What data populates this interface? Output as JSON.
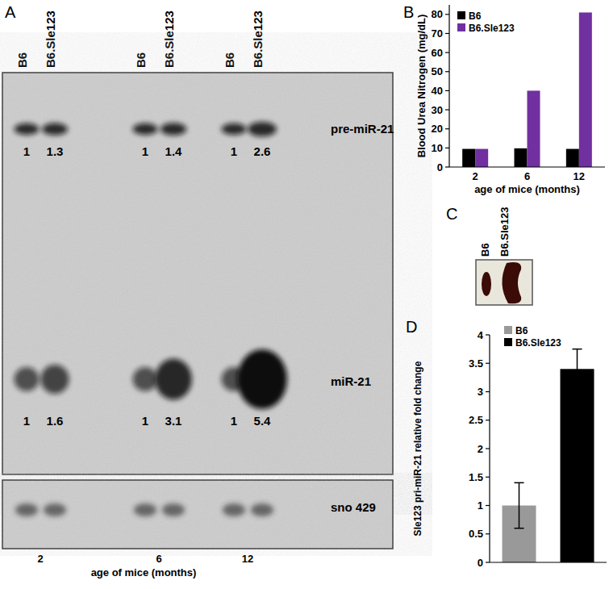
{
  "blot": {
    "panel": "A",
    "lanes": [
      "B6",
      "B6.Sle123",
      "B6",
      "B6.Sle123",
      "B6",
      "B6.Sle123"
    ],
    "bands": [
      {
        "label": "pre-miR-21",
        "values": [
          1,
          1.3,
          1,
          1.4,
          1,
          2.6
        ]
      },
      {
        "label": "miR-21",
        "values": [
          1,
          1.6,
          1,
          3.1,
          1,
          5.4
        ]
      },
      {
        "label": "sno 429"
      }
    ],
    "ages": [
      2,
      6,
      12
    ],
    "xlabel": "age of mice (months)"
  },
  "spleen_photo": {
    "panel": "C",
    "lanes": [
      "B6",
      "B6.Sle123"
    ]
  },
  "chart_data": [
    {
      "type": "bar",
      "title": "B",
      "xlabel": "age of mice (months)",
      "ylabel": "Blood Urea Nitrogen (mg/dL)",
      "categories": [
        2,
        6,
        12
      ],
      "series": [
        {
          "name": "B6",
          "color": "#000000",
          "values": [
            9.5,
            9.8,
            9.5
          ]
        },
        {
          "name": "B6.Sle123",
          "color": "#7030a0",
          "values": [
            9.5,
            40,
            81
          ]
        }
      ],
      "ylim": [
        0,
        85
      ],
      "yticks": [
        0,
        10,
        20,
        30,
        40,
        50,
        60,
        70,
        80
      ],
      "grid": false,
      "legend": "upper left"
    },
    {
      "type": "bar",
      "title": "D",
      "ylabel": "Sle123 pri-miR-21 relative fold change",
      "categories": [
        null
      ],
      "series": [
        {
          "name": "B6",
          "color": "#999999",
          "values": [
            1.0
          ],
          "errors": [
            0.4
          ]
        },
        {
          "name": "B6.Sle123",
          "color": "#000000",
          "values": [
            3.4
          ],
          "errors": [
            0.35
          ]
        }
      ],
      "ylim": [
        0,
        4
      ],
      "yticks": [
        0,
        0.5,
        1,
        1.5,
        2,
        2.5,
        3,
        3.5,
        4
      ],
      "grid": false,
      "legend": "upper left",
      "tick_labels": "y"
    }
  ]
}
